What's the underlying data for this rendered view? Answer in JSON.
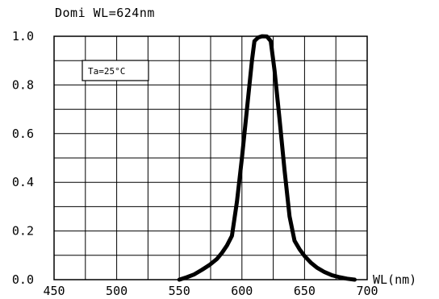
{
  "chart_data": {
    "type": "line",
    "title": "Domi WL=624nm",
    "xlabel": "WL(nm)",
    "ylabel": "",
    "xlim": [
      450,
      700
    ],
    "ylim": [
      0.0,
      1.0
    ],
    "x_ticks": [
      450,
      500,
      550,
      600,
      650,
      700
    ],
    "y_ticks": [
      0.0,
      0.2,
      0.4,
      0.6,
      0.8,
      1.0
    ],
    "x_tick_labels": [
      "450",
      "500",
      "550",
      "600",
      "650",
      "700"
    ],
    "y_tick_labels": [
      "0.0",
      "0.2",
      "0.4",
      "0.6",
      "0.8",
      "1.0"
    ],
    "grid": true,
    "annotation": "Ta=25°C",
    "series": [
      {
        "x": [
          550,
          556,
          562,
          568,
          574,
          580,
          584,
          588,
          592,
          596,
          600,
          604,
          608,
          610,
          613,
          616,
          620,
          623,
          626,
          630,
          634,
          638,
          642,
          646,
          650,
          655,
          660,
          666,
          672,
          678,
          684,
          690
        ],
        "y": [
          0.0,
          0.01,
          0.022,
          0.04,
          0.06,
          0.085,
          0.11,
          0.14,
          0.18,
          0.32,
          0.5,
          0.7,
          0.9,
          0.98,
          0.995,
          1.0,
          0.999,
          0.98,
          0.86,
          0.66,
          0.45,
          0.26,
          0.16,
          0.125,
          0.097,
          0.07,
          0.049,
          0.031,
          0.018,
          0.01,
          0.004,
          0.0
        ]
      }
    ]
  }
}
